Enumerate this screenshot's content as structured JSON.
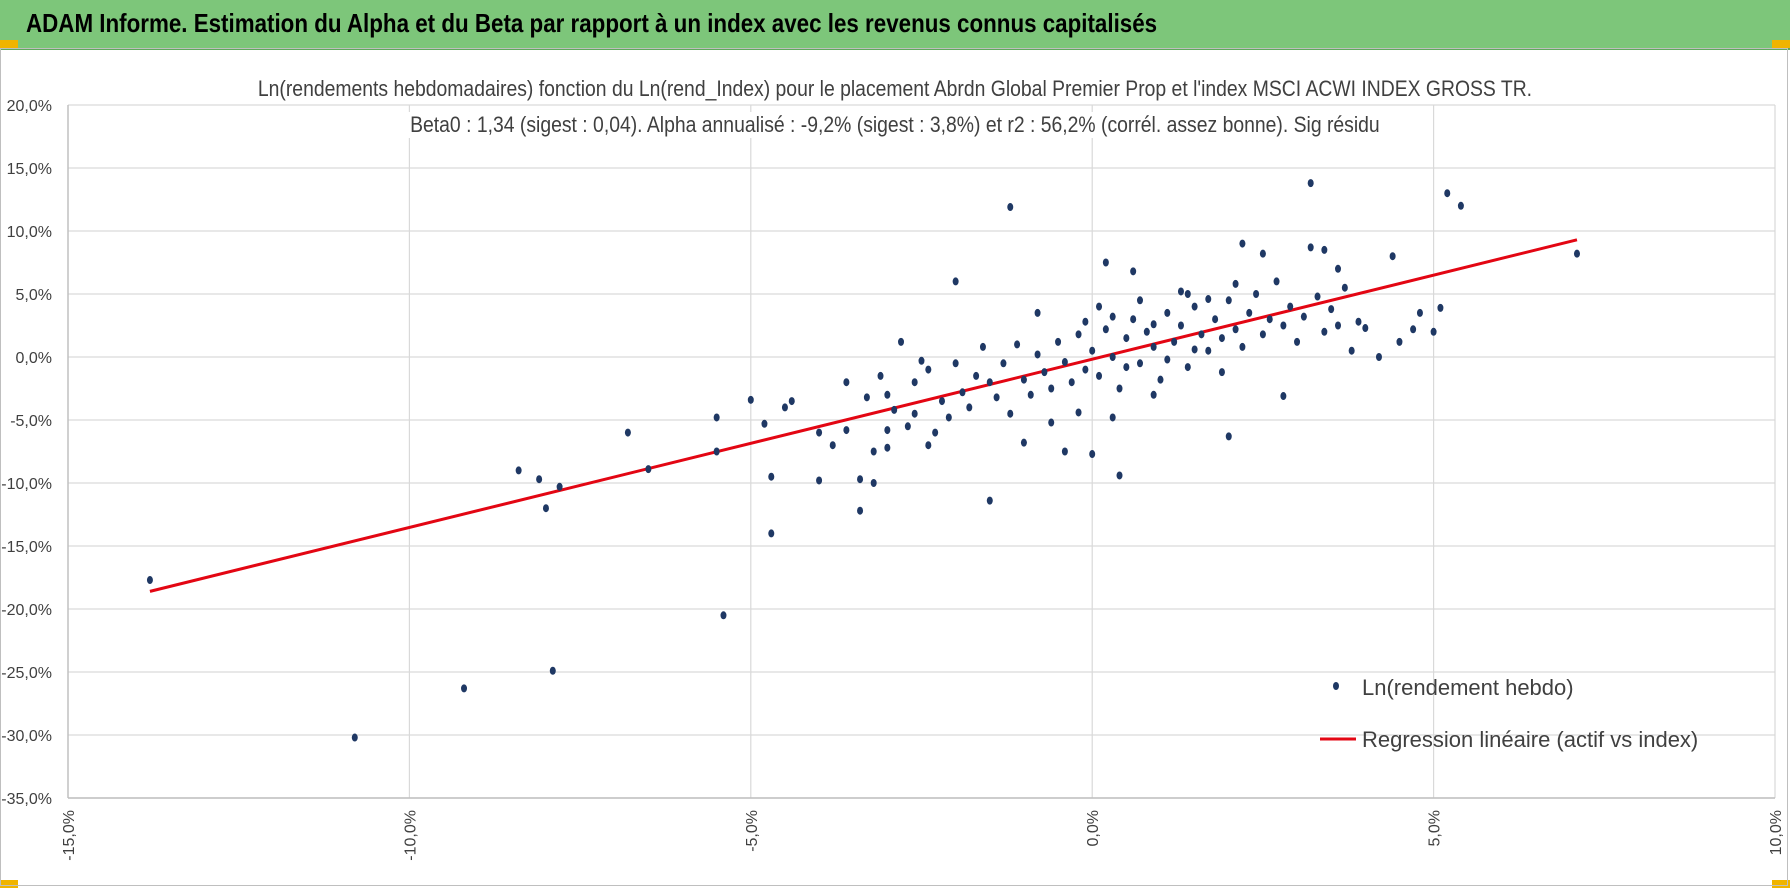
{
  "header": {
    "title": "ADAM Informe. Estimation du Alpha et du Beta par rapport à un index avec les revenus connus capitalisés"
  },
  "colors": {
    "header_bg": "#7dc67a",
    "points": "#1f3864",
    "regression": "#e30613"
  },
  "chart_data": {
    "type": "scatter",
    "title": "Ln(rendements hebdomadaires) fonction du Ln(rend_Index) pour le placement Abrdn Global Premier Prop et l'index MSCI  ACWI INDEX GROSS TR.",
    "subtitle": "Beta0 : 1,34 (sigest : 0,04). Alpha annualisé : -9,2% (sigest : 3,8%) et r2 : 56,2% (corrél. assez bonne). Sig résidu",
    "xlabel": "",
    "ylabel": "",
    "xlim": [
      -0.15,
      0.1
    ],
    "ylim": [
      -0.35,
      0.2
    ],
    "x_ticks": [
      -0.15,
      -0.1,
      -0.05,
      0.0,
      0.05,
      0.1
    ],
    "x_tick_labels": [
      "-15,0%",
      "-10,0%",
      "-5,0%",
      "0,0%",
      "5,0%",
      "10,0%"
    ],
    "y_ticks": [
      0.2,
      0.15,
      0.1,
      0.05,
      0.0,
      -0.05,
      -0.1,
      -0.15,
      -0.2,
      -0.25,
      -0.3,
      -0.35
    ],
    "y_tick_labels": [
      "20,0%",
      "15,0%",
      "10,0%",
      "5,0%",
      "0,0%",
      "-5,0%",
      "-10,0%",
      "-15,0%",
      "-20,0%",
      "-25,0%",
      "-30,0%",
      "-35,0%"
    ],
    "grid": true,
    "legend_position": "bottom-right",
    "series": [
      {
        "name": "Ln(rendement hebdo)",
        "kind": "scatter",
        "color": "#1f3864",
        "points": [
          [
            -0.138,
            -0.177
          ],
          [
            -0.108,
            -0.302
          ],
          [
            -0.092,
            -0.263
          ],
          [
            -0.079,
            -0.249
          ],
          [
            -0.054,
            -0.205
          ],
          [
            -0.084,
            -0.09
          ],
          [
            -0.081,
            -0.097
          ],
          [
            -0.08,
            -0.12
          ],
          [
            -0.078,
            -0.103
          ],
          [
            -0.068,
            -0.06
          ],
          [
            -0.065,
            -0.089
          ],
          [
            -0.055,
            -0.048
          ],
          [
            -0.055,
            -0.075
          ],
          [
            -0.05,
            -0.034
          ],
          [
            -0.048,
            -0.053
          ],
          [
            -0.047,
            -0.095
          ],
          [
            -0.047,
            -0.14
          ],
          [
            -0.045,
            -0.04
          ],
          [
            -0.044,
            -0.035
          ],
          [
            -0.04,
            -0.06
          ],
          [
            -0.04,
            -0.098
          ],
          [
            -0.038,
            -0.07
          ],
          [
            -0.036,
            -0.058
          ],
          [
            -0.034,
            -0.097
          ],
          [
            -0.034,
            -0.122
          ],
          [
            -0.032,
            -0.075
          ],
          [
            -0.032,
            -0.1
          ],
          [
            -0.03,
            -0.058
          ],
          [
            -0.03,
            -0.03
          ],
          [
            -0.03,
            -0.072
          ],
          [
            -0.028,
            0.012
          ],
          [
            -0.026,
            -0.045
          ],
          [
            -0.024,
            -0.07
          ],
          [
            -0.02,
            0.06
          ],
          [
            -0.015,
            -0.114
          ],
          [
            -0.012,
            0.119
          ],
          [
            -0.01,
            -0.068
          ],
          [
            -0.008,
            0.035
          ],
          [
            -0.006,
            -0.052
          ],
          [
            -0.004,
            -0.075
          ],
          [
            -0.002,
            -0.044
          ],
          [
            0.0,
            -0.077
          ],
          [
            0.002,
            0.075
          ],
          [
            0.003,
            -0.048
          ],
          [
            0.004,
            -0.094
          ],
          [
            0.006,
            0.068
          ],
          [
            0.009,
            -0.03
          ],
          [
            0.014,
            0.05
          ],
          [
            0.02,
            -0.063
          ],
          [
            0.022,
            0.09
          ],
          [
            0.025,
            0.082
          ],
          [
            0.028,
            -0.031
          ],
          [
            0.032,
            0.087
          ],
          [
            0.032,
            0.138
          ],
          [
            0.034,
            0.085
          ],
          [
            0.036,
            0.025
          ],
          [
            0.036,
            0.07
          ],
          [
            0.038,
            0.005
          ],
          [
            0.04,
            0.023
          ],
          [
            0.042,
            0.0
          ],
          [
            0.044,
            0.08
          ],
          [
            0.045,
            0.012
          ],
          [
            0.047,
            0.022
          ],
          [
            0.048,
            0.035
          ],
          [
            0.05,
            0.02
          ],
          [
            0.051,
            0.039
          ],
          [
            0.052,
            0.13
          ],
          [
            0.054,
            0.12
          ],
          [
            0.071,
            0.082
          ],
          [
            -0.026,
            -0.02
          ],
          [
            -0.024,
            -0.01
          ],
          [
            -0.022,
            -0.035
          ],
          [
            -0.02,
            -0.005
          ],
          [
            -0.019,
            -0.028
          ],
          [
            -0.018,
            -0.04
          ],
          [
            -0.017,
            -0.015
          ],
          [
            -0.016,
            0.008
          ],
          [
            -0.015,
            -0.02
          ],
          [
            -0.014,
            -0.032
          ],
          [
            -0.013,
            -0.005
          ],
          [
            -0.012,
            -0.045
          ],
          [
            -0.011,
            0.01
          ],
          [
            -0.01,
            -0.018
          ],
          [
            -0.009,
            -0.03
          ],
          [
            -0.008,
            0.002
          ],
          [
            -0.007,
            -0.012
          ],
          [
            -0.006,
            -0.025
          ],
          [
            -0.005,
            0.012
          ],
          [
            -0.004,
            -0.004
          ],
          [
            -0.003,
            -0.02
          ],
          [
            -0.002,
            0.018
          ],
          [
            -0.001,
            -0.01
          ],
          [
            0.0,
            0.005
          ],
          [
            0.001,
            -0.015
          ],
          [
            0.002,
            0.022
          ],
          [
            0.003,
            0.0
          ],
          [
            0.004,
            -0.025
          ],
          [
            0.005,
            0.015
          ],
          [
            0.006,
            0.03
          ],
          [
            0.007,
            -0.005
          ],
          [
            0.008,
            0.02
          ],
          [
            0.009,
            0.008
          ],
          [
            0.01,
            -0.018
          ],
          [
            0.011,
            0.035
          ],
          [
            0.012,
            0.012
          ],
          [
            0.013,
            0.025
          ],
          [
            0.014,
            -0.008
          ],
          [
            0.015,
            0.04
          ],
          [
            0.016,
            0.018
          ],
          [
            0.017,
            0.005
          ],
          [
            0.018,
            0.03
          ],
          [
            0.019,
            0.015
          ],
          [
            0.02,
            0.045
          ],
          [
            0.021,
            0.022
          ],
          [
            0.022,
            0.008
          ],
          [
            0.023,
            0.035
          ],
          [
            0.024,
            0.05
          ],
          [
            0.025,
            0.018
          ],
          [
            0.026,
            0.03
          ],
          [
            0.027,
            0.06
          ],
          [
            0.028,
            0.025
          ],
          [
            0.029,
            0.04
          ],
          [
            0.03,
            0.012
          ],
          [
            0.031,
            0.032
          ],
          [
            0.033,
            0.048
          ],
          [
            0.034,
            0.02
          ],
          [
            0.035,
            0.038
          ],
          [
            0.037,
            0.055
          ],
          [
            0.039,
            0.028
          ],
          [
            -0.036,
            -0.02
          ],
          [
            -0.033,
            -0.032
          ],
          [
            -0.031,
            -0.015
          ],
          [
            -0.029,
            -0.042
          ],
          [
            -0.027,
            -0.055
          ],
          [
            -0.025,
            -0.003
          ],
          [
            -0.023,
            -0.06
          ],
          [
            -0.021,
            -0.048
          ],
          [
            -0.001,
            0.028
          ],
          [
            0.001,
            0.04
          ],
          [
            0.003,
            0.032
          ],
          [
            0.005,
            -0.008
          ],
          [
            0.007,
            0.045
          ],
          [
            0.009,
            0.026
          ],
          [
            0.011,
            -0.002
          ],
          [
            0.013,
            0.052
          ],
          [
            0.015,
            0.006
          ],
          [
            0.017,
            0.046
          ],
          [
            0.019,
            -0.012
          ],
          [
            0.021,
            0.058
          ]
        ]
      },
      {
        "name": "Regression linéaire (actif vs index)",
        "kind": "line",
        "color": "#e30613",
        "points": [
          [
            -0.138,
            -0.186
          ],
          [
            0.071,
            0.093
          ]
        ]
      }
    ]
  }
}
